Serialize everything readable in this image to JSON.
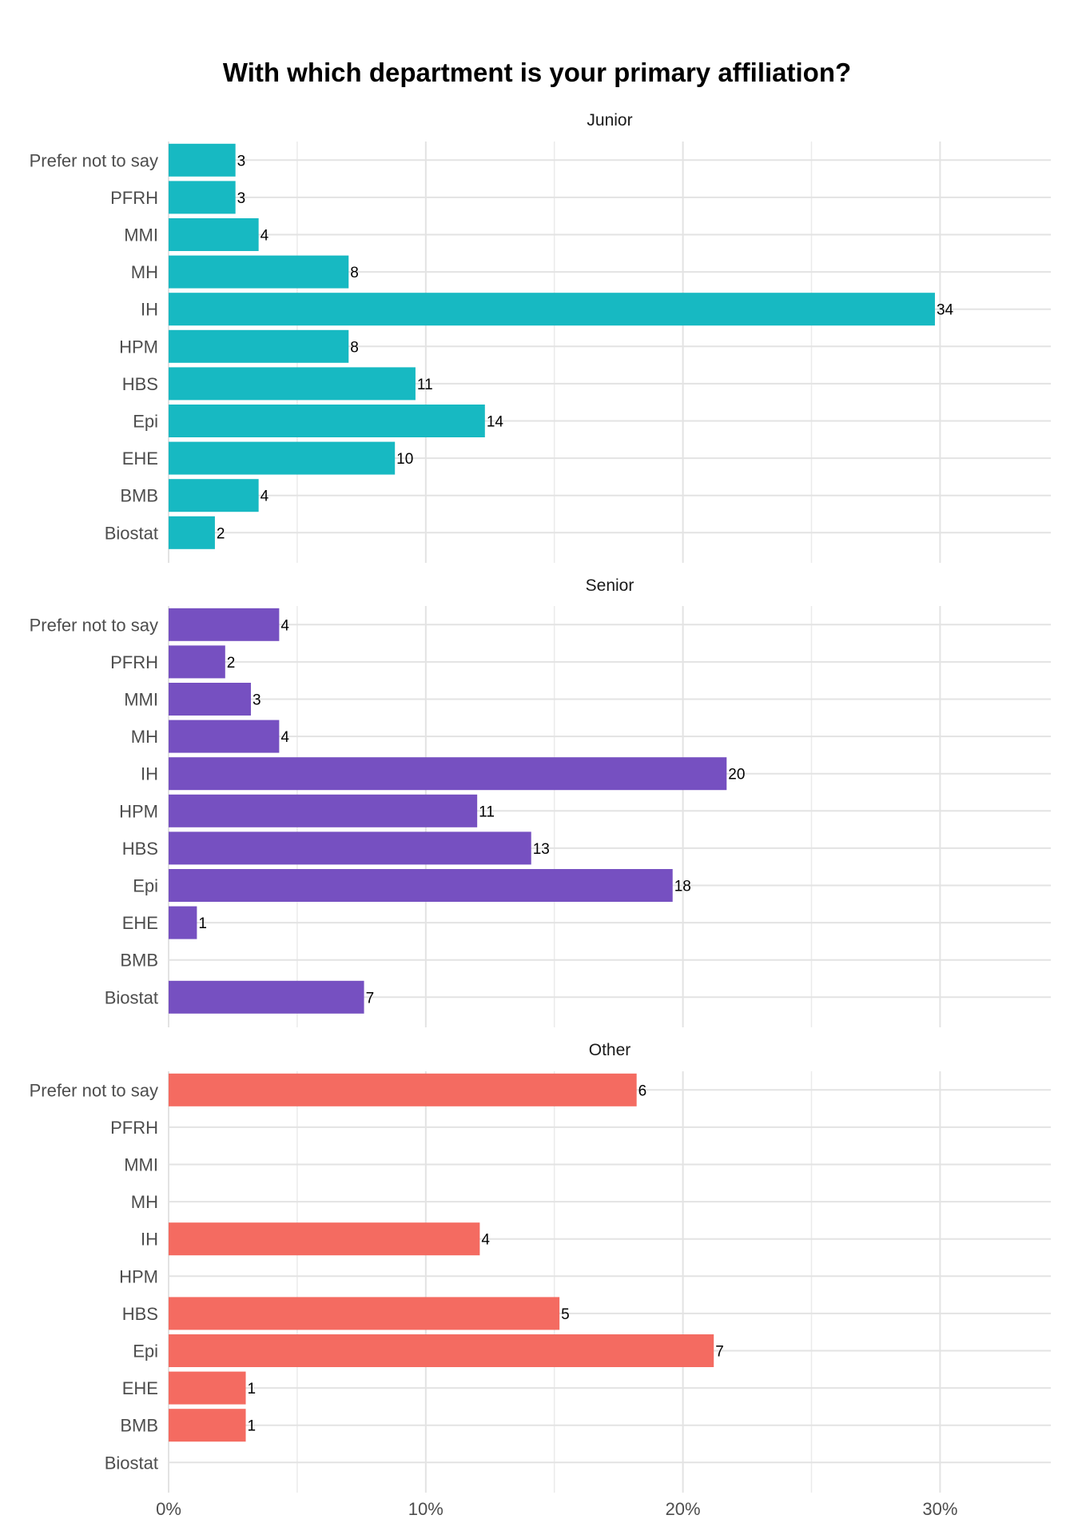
{
  "chart_data": {
    "type": "bar",
    "orientation": "horizontal",
    "title": "With which department is your primary affiliation?",
    "xlabel": "",
    "ylabel": "",
    "x_tick_labels": [
      "0%",
      "10%",
      "20%",
      "30%"
    ],
    "x_ticks": [
      0,
      10,
      20,
      30
    ],
    "xlim": [
      0,
      34.3
    ],
    "value_unit": "percent of facet respondents",
    "grid": true,
    "categories": [
      "Prefer not to say",
      "PFRH",
      "MMI",
      "MH",
      "IH",
      "HPM",
      "HBS",
      "Epi",
      "EHE",
      "BMB",
      "Biostat"
    ],
    "facets": [
      {
        "name": "Junior",
        "color": "#17B9C2",
        "counts": [
          3,
          3,
          4,
          8,
          34,
          8,
          11,
          14,
          10,
          4,
          2
        ],
        "percents": [
          2.6,
          2.6,
          3.5,
          7.0,
          29.8,
          7.0,
          9.6,
          12.3,
          8.8,
          3.5,
          1.8
        ]
      },
      {
        "name": "Senior",
        "color": "#7650C1",
        "counts": [
          4,
          2,
          3,
          4,
          20,
          11,
          13,
          18,
          1,
          null,
          7
        ],
        "percents": [
          4.3,
          2.2,
          3.2,
          4.3,
          21.7,
          12.0,
          14.1,
          19.6,
          1.1,
          0,
          7.6
        ]
      },
      {
        "name": "Other",
        "color": "#F46B61",
        "counts": [
          6,
          null,
          null,
          null,
          4,
          null,
          5,
          7,
          1,
          1,
          null
        ],
        "percents": [
          18.2,
          0,
          0,
          0,
          12.1,
          0,
          15.2,
          21.2,
          3.0,
          3.0,
          0
        ]
      }
    ]
  }
}
